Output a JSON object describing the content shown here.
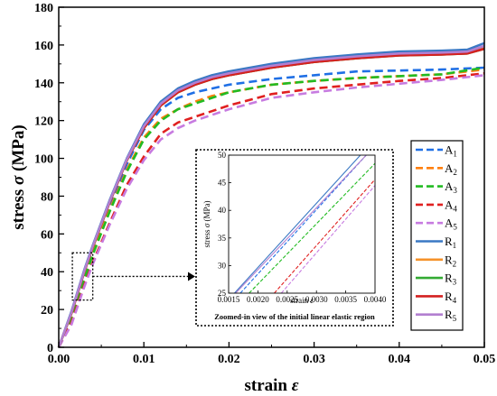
{
  "chart_data": [
    {
      "type": "line",
      "title": "",
      "xlabel": "strain ε",
      "ylabel": "stress σ (MPa)",
      "xlim": [
        0.0,
        0.05
      ],
      "ylim": [
        0,
        180
      ],
      "xticks": [
        "0.00",
        "0.01",
        "0.02",
        "0.03",
        "0.04",
        "0.05"
      ],
      "yticks": [
        "0",
        "20",
        "40",
        "60",
        "80",
        "100",
        "120",
        "140",
        "160",
        "180"
      ],
      "grid": false,
      "legend": "right",
      "series": [
        {
          "name": "A1",
          "sub": "1",
          "color": "#1f6fe5",
          "style": "dashed",
          "x": [
            0,
            0.0015,
            0.003,
            0.004,
            0.006,
            0.008,
            0.01,
            0.012,
            0.014,
            0.016,
            0.018,
            0.02,
            0.025,
            0.03,
            0.035,
            0.04,
            0.045,
            0.05
          ],
          "y": [
            0,
            17,
            38,
            51,
            75,
            97,
            115,
            126,
            132,
            135,
            137,
            139,
            142,
            144,
            146,
            146.5,
            147,
            148
          ]
        },
        {
          "name": "A2",
          "sub": "2",
          "color": "#ff7f0e",
          "style": "dashed",
          "x": [
            0,
            0.0015,
            0.003,
            0.004,
            0.006,
            0.008,
            0.01,
            0.012,
            0.014,
            0.016,
            0.018,
            0.02,
            0.025,
            0.03,
            0.035,
            0.04,
            0.045,
            0.05
          ],
          "y": [
            0,
            16,
            37,
            50,
            73,
            94,
            111,
            121,
            126,
            130,
            133,
            135,
            139,
            141,
            142.5,
            143.5,
            144.5,
            147
          ]
        },
        {
          "name": "A3",
          "sub": "3",
          "color": "#22bb22",
          "style": "dashed",
          "x": [
            0,
            0.0015,
            0.003,
            0.004,
            0.006,
            0.008,
            0.01,
            0.012,
            0.014,
            0.016,
            0.018,
            0.02,
            0.025,
            0.03,
            0.035,
            0.04,
            0.045,
            0.05
          ],
          "y": [
            0,
            15,
            36,
            49,
            72,
            93,
            110,
            120,
            126,
            129,
            132,
            135,
            139,
            141,
            142.5,
            143.5,
            144.5,
            148
          ]
        },
        {
          "name": "A4",
          "sub": "4",
          "color": "#e02020",
          "style": "dashed",
          "x": [
            0,
            0.0015,
            0.003,
            0.004,
            0.006,
            0.008,
            0.01,
            0.012,
            0.014,
            0.016,
            0.018,
            0.02,
            0.025,
            0.03,
            0.035,
            0.04,
            0.045,
            0.05
          ],
          "y": [
            0,
            13,
            33,
            45,
            66,
            86,
            101,
            113,
            119,
            122,
            125,
            128,
            134,
            137,
            139,
            141,
            142.5,
            145
          ]
        },
        {
          "name": "A5",
          "sub": "5",
          "color": "#c77be0",
          "style": "dashed",
          "x": [
            0,
            0.0015,
            0.003,
            0.004,
            0.006,
            0.008,
            0.01,
            0.012,
            0.014,
            0.016,
            0.018,
            0.02,
            0.025,
            0.03,
            0.035,
            0.04,
            0.045,
            0.05
          ],
          "y": [
            0,
            12,
            32,
            44,
            65,
            84,
            99,
            110,
            116,
            120,
            123,
            126,
            132,
            135,
            137.5,
            139.5,
            141.5,
            144
          ]
        },
        {
          "name": "R1",
          "sub": "1",
          "color": "#3a78c4",
          "style": "solid",
          "x": [
            0,
            0.0015,
            0.003,
            0.004,
            0.006,
            0.008,
            0.01,
            0.012,
            0.014,
            0.016,
            0.018,
            0.02,
            0.025,
            0.03,
            0.035,
            0.04,
            0.045,
            0.048,
            0.05
          ],
          "y": [
            0,
            19,
            41,
            54,
            78,
            100,
            118,
            130,
            137,
            141,
            144,
            146,
            150,
            153,
            155,
            156.5,
            157,
            157.5,
            161
          ]
        },
        {
          "name": "R2",
          "sub": "2",
          "color": "#f5922a",
          "style": "solid",
          "x": [
            0,
            0.0015,
            0.003,
            0.004,
            0.006,
            0.008,
            0.01,
            0.012,
            0.014,
            0.016,
            0.018,
            0.02,
            0.025,
            0.03,
            0.035,
            0.04,
            0.045,
            0.048,
            0.05
          ],
          "y": [
            0,
            18,
            40,
            53,
            77,
            99,
            116,
            128,
            135,
            139,
            142,
            144,
            148,
            151,
            153,
            155,
            155.5,
            156,
            159
          ]
        },
        {
          "name": "R3",
          "sub": "3",
          "color": "#33aa33",
          "style": "solid",
          "x": [
            0,
            0.0015,
            0.003,
            0.004,
            0.006,
            0.008,
            0.01,
            0.012,
            0.014,
            0.016,
            0.018,
            0.02,
            0.025,
            0.03,
            0.035,
            0.04,
            0.045,
            0.048,
            0.05
          ],
          "y": [
            0,
            18,
            40,
            53,
            77,
            99,
            116,
            128,
            135,
            139,
            142,
            144,
            148,
            151,
            153,
            154.5,
            155,
            155.5,
            158
          ]
        },
        {
          "name": "R4",
          "sub": "4",
          "color": "#d42020",
          "style": "solid",
          "x": [
            0,
            0.0015,
            0.003,
            0.004,
            0.006,
            0.008,
            0.01,
            0.012,
            0.014,
            0.016,
            0.018,
            0.02,
            0.025,
            0.03,
            0.035,
            0.04,
            0.045,
            0.048,
            0.05
          ],
          "y": [
            0,
            18,
            40,
            53,
            77,
            99,
            116,
            128,
            135,
            139,
            142,
            144,
            148,
            151,
            153,
            154.5,
            155,
            155.5,
            158
          ]
        },
        {
          "name": "R5",
          "sub": "5",
          "color": "#b27fd0",
          "style": "solid",
          "x": [
            0,
            0.0015,
            0.003,
            0.004,
            0.006,
            0.008,
            0.01,
            0.012,
            0.014,
            0.016,
            0.018,
            0.02,
            0.025,
            0.03,
            0.035,
            0.04,
            0.045,
            0.048,
            0.05
          ],
          "y": [
            0,
            18.5,
            40.5,
            53.5,
            77.5,
            99.5,
            117,
            129,
            136,
            140,
            143,
            145,
            149,
            152,
            154,
            155.5,
            156,
            156.5,
            159.5
          ]
        }
      ]
    },
    {
      "type": "line",
      "title": "",
      "caption": "Zoomed-in view of the initial linear elastic region",
      "xlabel": "strain ε",
      "ylabel": "stress σ (MPa)",
      "xlim": [
        0.0015,
        0.004
      ],
      "ylim": [
        25,
        50
      ],
      "xticks": [
        "0.0015",
        "0.0020",
        "0.0025",
        "0.0030",
        "0.0035",
        "0.0040"
      ],
      "yticks": [
        "25",
        "30",
        "35",
        "40",
        "45",
        "50"
      ],
      "series": [
        {
          "name": "A1",
          "color": "#1f6fe5",
          "style": "dashed",
          "x": [
            0.0017,
            0.00385
          ],
          "y": [
            25,
            50
          ]
        },
        {
          "name": "A3",
          "color": "#22bb22",
          "style": "dashed",
          "x": [
            0.00185,
            0.004
          ],
          "y": [
            25,
            48.5
          ]
        },
        {
          "name": "A4",
          "color": "#e02020",
          "style": "dashed",
          "x": [
            0.00228,
            0.004
          ],
          "y": [
            25,
            45.6
          ]
        },
        {
          "name": "A5",
          "color": "#c77be0",
          "style": "dashed",
          "x": [
            0.0024,
            0.004
          ],
          "y": [
            25,
            44.5
          ]
        },
        {
          "name": "R1",
          "color": "#3a78c4",
          "style": "solid",
          "x": [
            0.0016,
            0.00375
          ],
          "y": [
            25,
            50
          ]
        },
        {
          "name": "R5",
          "color": "#b27fd0",
          "style": "solid",
          "x": [
            0.00162,
            0.00385
          ],
          "y": [
            25,
            50
          ]
        }
      ]
    }
  ]
}
